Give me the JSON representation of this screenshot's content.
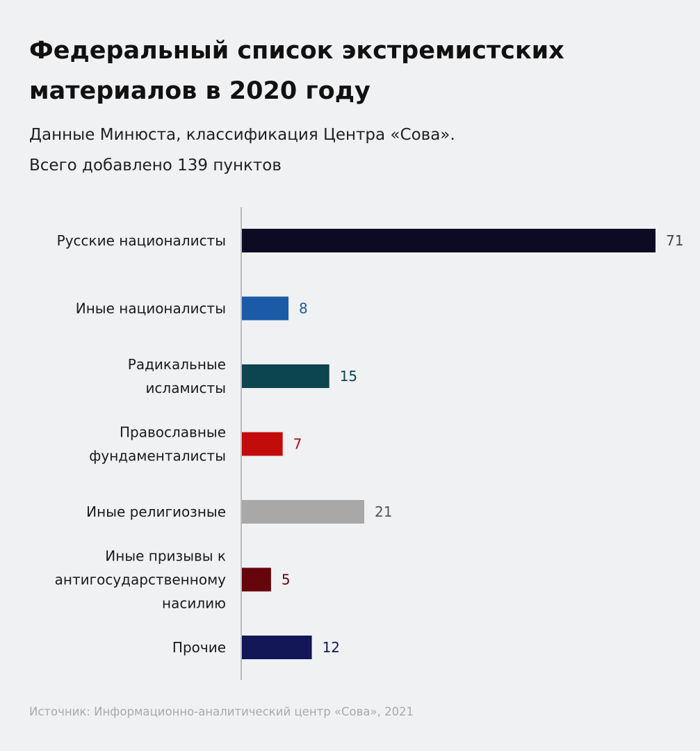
{
  "header": {
    "title_line1": "Федеральный список экстремистских",
    "title_line2": "материалов в 2020 году",
    "subtitle_line1": "Данные Минюста, классификация Центра «Сова».",
    "subtitle_line2": "Всего добавлено 139 пунктов"
  },
  "source": "Источник: Информационно-аналитический центр «Сова», 2021",
  "chart_data": {
    "type": "bar",
    "orientation": "horizontal",
    "title": "Федеральный список экстремистских материалов в 2020 году",
    "subtitle": "Данные Минюста, классификация Центра «Сова». Всего добавлено 139 пунктов",
    "xlabel": "",
    "ylabel": "",
    "xlim": [
      0,
      71
    ],
    "grid": false,
    "categories": [
      [
        "Русские националисты"
      ],
      [
        "Иные националисты"
      ],
      [
        "Радикальные",
        "исламисты"
      ],
      [
        "Православные",
        "фундаменталисты"
      ],
      [
        "Иные религиозные"
      ],
      [
        "Иные призывы к",
        "антигосударственному",
        "насилию"
      ],
      [
        "Прочие"
      ]
    ],
    "values": [
      71,
      8,
      15,
      7,
      21,
      5,
      12
    ],
    "bar_colors": [
      "#0d0a24",
      "#1b5aa6",
      "#0c4450",
      "#c20c0c",
      "#a8a8a8",
      "#66050c",
      "#131657"
    ],
    "label_colors": [
      "#444444",
      "#1b5aa6",
      "#0c4450",
      "#a81010",
      "#555555",
      "#66050c",
      "#131657"
    ]
  }
}
